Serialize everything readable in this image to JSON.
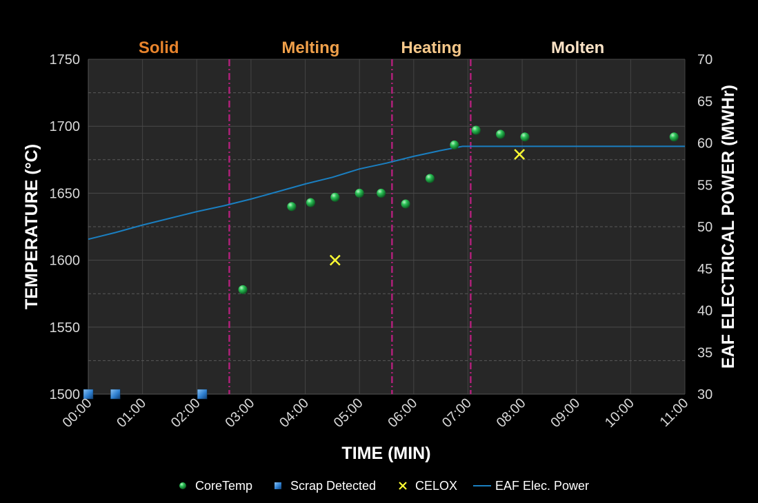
{
  "chart_data": {
    "type": "scatter",
    "x_unit": "minutes",
    "x_range": [
      0,
      11
    ],
    "x_ticks": [
      0,
      1,
      2,
      3,
      4,
      5,
      6,
      7,
      8,
      9,
      10,
      11
    ],
    "x_tick_labels": [
      "00:00",
      "01:00",
      "02:00",
      "03:00",
      "04:00",
      "05:00",
      "06:00",
      "07:00",
      "08:00",
      "09:00",
      "10:00",
      "11:00"
    ],
    "xlabel": "TIME (MIN)",
    "y_left": {
      "label": "TEMPERATURE (°C)",
      "range": [
        1500,
        1750
      ],
      "ticks": [
        1500,
        1550,
        1600,
        1650,
        1700,
        1750
      ],
      "minor_gridlines": [
        1525,
        1575,
        1625,
        1675,
        1725
      ]
    },
    "y_right": {
      "label": "EAF ELECTRICAL POWER (MWHr)",
      "range": [
        30,
        70
      ],
      "ticks": [
        30,
        35,
        40,
        45,
        50,
        55,
        60,
        65,
        70
      ]
    },
    "phases": [
      {
        "label": "Solid",
        "start": 0,
        "end": 2.6,
        "color": "#e8842c"
      },
      {
        "label": "Melting",
        "start": 2.6,
        "end": 5.6,
        "color": "#f0a04a"
      },
      {
        "label": "Heating",
        "start": 5.6,
        "end": 7.05,
        "color": "#f6c88a"
      },
      {
        "label": "Molten",
        "start": 7.05,
        "end": 11,
        "color": "#fbe3c6"
      }
    ],
    "phase_boundaries": [
      2.6,
      5.6,
      7.05
    ],
    "series": [
      {
        "name": "CoreTemp",
        "kind": "scatter",
        "marker": "sphere",
        "color": "#22b14c",
        "axis": "left",
        "points": [
          [
            2.85,
            1578
          ],
          [
            3.75,
            1640
          ],
          [
            4.1,
            1643
          ],
          [
            4.55,
            1647
          ],
          [
            5.0,
            1650
          ],
          [
            5.4,
            1650
          ],
          [
            5.85,
            1642
          ],
          [
            6.3,
            1661
          ],
          [
            6.75,
            1686
          ],
          [
            7.15,
            1697
          ],
          [
            7.6,
            1694
          ],
          [
            8.05,
            1692
          ],
          [
            10.8,
            1692
          ]
        ]
      },
      {
        "name": "Scrap Detected",
        "kind": "scatter",
        "marker": "square",
        "color": "#2e7fd0",
        "axis": "left",
        "points": [
          [
            0.0,
            1500
          ],
          [
            0.5,
            1500
          ],
          [
            2.1,
            1500
          ]
        ]
      },
      {
        "name": "CELOX",
        "kind": "scatter",
        "marker": "x",
        "color": "#ffff33",
        "axis": "left",
        "points": [
          [
            4.55,
            1600
          ],
          [
            7.95,
            1679
          ]
        ]
      },
      {
        "name": "EAF Elec. Power",
        "kind": "line",
        "color": "#1a7fc1",
        "axis": "right",
        "points": [
          [
            0,
            48.5
          ],
          [
            0.5,
            49.3
          ],
          [
            1,
            50.2
          ],
          [
            1.5,
            51.0
          ],
          [
            2,
            51.8
          ],
          [
            2.5,
            52.5
          ],
          [
            3,
            53.3
          ],
          [
            3.5,
            54.2
          ],
          [
            4,
            55.1
          ],
          [
            4.5,
            55.9
          ],
          [
            5,
            56.9
          ],
          [
            5.5,
            57.6
          ],
          [
            6,
            58.4
          ],
          [
            6.5,
            59.1
          ],
          [
            6.9,
            59.6
          ],
          [
            7.5,
            59.6
          ],
          [
            8,
            59.6
          ],
          [
            9,
            59.6
          ],
          [
            10,
            59.6
          ],
          [
            11,
            59.6
          ]
        ]
      }
    ],
    "legend_position": "bottom-center"
  }
}
